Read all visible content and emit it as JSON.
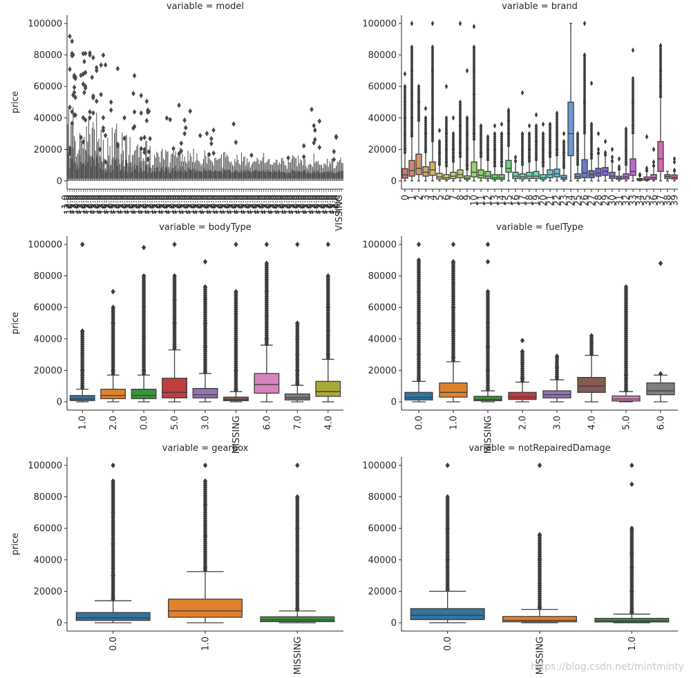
{
  "watermark": "https://blog.csdn.net/mintminty",
  "chart_data": [
    {
      "type": "box",
      "title": "variable = model",
      "ylabel": "price",
      "ylim": [
        0,
        100000
      ],
      "yticks": [
        0,
        20000,
        40000,
        60000,
        80000,
        100000
      ],
      "palette": "single",
      "color": "#4a4a4a",
      "dense": true,
      "extra_label": "VISSING",
      "categories": [],
      "boxes": [
        {
          "category": "bulk",
          "q1": 1500,
          "median": 4000,
          "q3": 9000,
          "whisker_low": 0,
          "whisker_high": 47000,
          "outliers": [
            60000,
            80000,
            100000
          ]
        }
      ]
    },
    {
      "type": "box",
      "title": "variable = brand",
      "ylabel": "",
      "ylim": [
        0,
        100000
      ],
      "yticks": [
        0,
        20000,
        40000,
        60000,
        80000,
        100000
      ],
      "palette": "husl",
      "categories": [
        "0",
        "1",
        "2",
        "3",
        "4",
        "5",
        "6",
        "7",
        "8",
        "9",
        "10",
        "11",
        "12",
        "13",
        "14",
        "15",
        "16",
        "17",
        "18",
        "19",
        "20",
        "21",
        "22",
        "23",
        "24",
        "25",
        "26",
        "27",
        "28",
        "29",
        "30",
        "31",
        "32",
        "33",
        "34",
        "35",
        "36",
        "37",
        "38",
        "39"
      ],
      "boxes": [
        {
          "q1": 1800,
          "median": 3800,
          "q3": 7800,
          "whisker_low": 0,
          "whisker_high": 17500,
          "outliers": [
            20000,
            30000,
            40000,
            50000,
            60000,
            68000
          ]
        },
        {
          "q1": 3000,
          "median": 6500,
          "q3": 13000,
          "whisker_low": 0,
          "whisker_high": 28000,
          "outliers": [
            30000,
            40000,
            55000,
            70000,
            85000,
            100000
          ]
        },
        {
          "q1": 4000,
          "median": 8000,
          "q3": 17000,
          "whisker_low": 0,
          "whisker_high": 38000,
          "outliers": [
            40000,
            50000,
            60000
          ]
        },
        {
          "q1": 3000,
          "median": 5500,
          "q3": 9000,
          "whisker_low": 0,
          "whisker_high": 18000,
          "outliers": [
            20000,
            30000,
            40000,
            46000
          ]
        },
        {
          "q1": 3500,
          "median": 7000,
          "q3": 12000,
          "whisker_low": 0,
          "whisker_high": 25000,
          "outliers": [
            30000,
            40000,
            55000,
            70000,
            85000,
            100000
          ]
        },
        {
          "q1": 1200,
          "median": 2500,
          "q3": 4800,
          "whisker_low": 0,
          "whisker_high": 10000,
          "outliers": [
            12000,
            18000,
            25000,
            32000
          ]
        },
        {
          "q1": 1000,
          "median": 2000,
          "q3": 4000,
          "whisker_low": 0,
          "whisker_high": 9000,
          "outliers": [
            12000,
            20000,
            30000,
            40000,
            60000
          ]
        },
        {
          "q1": 1500,
          "median": 3000,
          "q3": 5500,
          "whisker_low": 0,
          "whisker_high": 12000,
          "outliers": [
            15000,
            20000,
            30000,
            40000
          ]
        },
        {
          "q1": 2000,
          "median": 4000,
          "q3": 7000,
          "whisker_low": 0,
          "whisker_high": 15000,
          "outliers": [
            18000,
            25000,
            35000,
            50000,
            100000
          ]
        },
        {
          "q1": 1000,
          "median": 1800,
          "q3": 3200,
          "whisker_low": 0,
          "whisker_high": 7000,
          "outliers": [
            10000,
            20000,
            30000,
            40000,
            70000
          ]
        },
        {
          "q1": 2500,
          "median": 5500,
          "q3": 12000,
          "whisker_low": 0,
          "whisker_high": 26000,
          "outliers": [
            30000,
            40000,
            55000,
            70000,
            85000,
            98000
          ]
        },
        {
          "q1": 1800,
          "median": 3500,
          "q3": 7000,
          "whisker_low": 0,
          "whisker_high": 15000,
          "outliers": [
            18000,
            25000,
            35000
          ]
        },
        {
          "q1": 1500,
          "median": 3000,
          "q3": 6000,
          "whisker_low": 0,
          "whisker_high": 13000,
          "outliers": [
            15000,
            20000,
            28000
          ]
        },
        {
          "q1": 1000,
          "median": 2000,
          "q3": 4000,
          "whisker_low": 0,
          "whisker_high": 9000,
          "outliers": [
            12000,
            20000,
            30000,
            35000
          ]
        },
        {
          "q1": 1000,
          "median": 2000,
          "q3": 4000,
          "whisker_low": 0,
          "whisker_high": 9000,
          "outliers": [
            12000,
            20000,
            30000,
            36000
          ]
        },
        {
          "q1": 5500,
          "median": 8000,
          "q3": 13000,
          "whisker_low": 0,
          "whisker_high": 22000,
          "outliers": [
            30000,
            38000,
            45000
          ]
        },
        {
          "q1": 1500,
          "median": 3000,
          "q3": 5500,
          "whisker_low": 0,
          "whisker_high": 12000,
          "outliers": [
            15000
          ]
        },
        {
          "q1": 1200,
          "median": 2500,
          "q3": 4500,
          "whisker_low": 0,
          "whisker_high": 10000,
          "outliers": [
            12000,
            20000,
            30000,
            56000
          ]
        },
        {
          "q1": 1500,
          "median": 3000,
          "q3": 5500,
          "whisker_low": 0,
          "whisker_high": 12000,
          "outliers": [
            15000,
            20000,
            30000,
            35000
          ]
        },
        {
          "q1": 1500,
          "median": 3000,
          "q3": 6000,
          "whisker_low": 0,
          "whisker_high": 13000,
          "outliers": [
            15000,
            25000,
            35000,
            42000
          ]
        },
        {
          "q1": 1000,
          "median": 2000,
          "q3": 4000,
          "whisker_low": 0,
          "whisker_high": 9000,
          "outliers": [
            12000,
            20000,
            30000,
            36000
          ]
        },
        {
          "q1": 2000,
          "median": 4000,
          "q3": 7000,
          "whisker_low": 0,
          "whisker_high": 15000,
          "outliers": [
            18000,
            25000,
            36000
          ]
        },
        {
          "q1": 2500,
          "median": 4500,
          "q3": 7500,
          "whisker_low": 0,
          "whisker_high": 16000,
          "outliers": [
            20000,
            30000,
            43000
          ]
        },
        {
          "q1": 1000,
          "median": 2000,
          "q3": 3500,
          "whisker_low": 0,
          "whisker_high": 8000,
          "outliers": [
            10000,
            18000,
            25000,
            30000
          ]
        },
        {
          "q1": 16000,
          "median": 30000,
          "q3": 50000,
          "whisker_low": 0,
          "whisker_high": 100000,
          "outliers": []
        },
        {
          "q1": 1500,
          "median": 2800,
          "q3": 4500,
          "whisker_low": 0,
          "whisker_high": 10000,
          "outliers": [
            12000,
            20000,
            30000
          ]
        },
        {
          "q1": 2000,
          "median": 5000,
          "q3": 13500,
          "whisker_low": 0,
          "whisker_high": 30000,
          "outliers": [
            35000,
            50000,
            65000,
            80000,
            100000
          ]
        },
        {
          "q1": 2000,
          "median": 4000,
          "q3": 6500,
          "whisker_low": 0,
          "whisker_high": 14000,
          "outliers": [
            17000,
            27000,
            36000,
            62000
          ]
        },
        {
          "q1": 3000,
          "median": 5000,
          "q3": 8000,
          "whisker_low": 0,
          "whisker_high": 17000,
          "outliers": [
            20000,
            30000
          ]
        },
        {
          "q1": 3500,
          "median": 6000,
          "q3": 8500,
          "whisker_low": 0,
          "whisker_high": 16000,
          "outliers": [
            18000,
            25000
          ]
        },
        {
          "q1": 1500,
          "median": 3000,
          "q3": 5500,
          "whisker_low": 0,
          "whisker_high": 12000,
          "outliers": [
            15000,
            20000
          ]
        },
        {
          "q1": 1000,
          "median": 1800,
          "q3": 3000,
          "whisker_low": 0,
          "whisker_high": 7000,
          "outliers": [
            9000,
            14000
          ]
        },
        {
          "q1": 1200,
          "median": 2500,
          "q3": 4500,
          "whisker_low": 0,
          "whisker_high": 10000,
          "outliers": [
            12000,
            20000,
            33000
          ]
        },
        {
          "q1": 3500,
          "median": 6000,
          "q3": 14000,
          "whisker_low": 0,
          "whisker_high": 30000,
          "outliers": [
            35000,
            50000,
            65000,
            83000
          ]
        },
        {
          "q1": 300,
          "median": 800,
          "q3": 1500,
          "whisker_low": 0,
          "whisker_high": 3000,
          "outliers": [
            4000
          ]
        },
        {
          "q1": 500,
          "median": 1200,
          "q3": 2500,
          "whisker_low": 0,
          "whisker_high": 6000,
          "outliers": [
            8000,
            28000
          ]
        },
        {
          "q1": 1000,
          "median": 2000,
          "q3": 4000,
          "whisker_low": 0,
          "whisker_high": 9000,
          "outliers": [
            12000,
            20000
          ]
        },
        {
          "q1": 6000,
          "median": 14000,
          "q3": 25000,
          "whisker_low": 0,
          "whisker_high": 53000,
          "outliers": [
            60000,
            70000,
            86000
          ]
        },
        {
          "q1": 1500,
          "median": 2800,
          "q3": 4000,
          "whisker_low": 0,
          "whisker_high": 6000,
          "outliers": []
        },
        {
          "q1": 1200,
          "median": 2200,
          "q3": 3800,
          "whisker_low": 0,
          "whisker_high": 6000,
          "outliers": [
            12000,
            14000
          ]
        }
      ]
    },
    {
      "type": "box",
      "title": "variable = bodyType",
      "ylabel": "price",
      "ylim": [
        0,
        100000
      ],
      "yticks": [
        0,
        20000,
        40000,
        60000,
        80000,
        100000
      ],
      "palette": "tab10",
      "categories": [
        "1.0",
        "2.0",
        "0.0",
        "5.0",
        "3.0",
        "MISSING",
        "6.0",
        "7.0",
        "4.0"
      ],
      "boxes": [
        {
          "q1": 800,
          "median": 1800,
          "q3": 4000,
          "whisker_low": 0,
          "whisker_high": 8000,
          "outliers": [
            10000,
            20000,
            30000,
            45000,
            100000
          ]
        },
        {
          "q1": 2000,
          "median": 4000,
          "q3": 8000,
          "whisker_low": 0,
          "whisker_high": 17000,
          "outliers": [
            20000,
            35000,
            50000,
            60000,
            70000
          ]
        },
        {
          "q1": 2000,
          "median": 4000,
          "q3": 8000,
          "whisker_low": 0,
          "whisker_high": 17000,
          "outliers": [
            20000,
            40000,
            60000,
            80000,
            98000
          ]
        },
        {
          "q1": 2500,
          "median": 6000,
          "q3": 15000,
          "whisker_low": 0,
          "whisker_high": 33000,
          "outliers": [
            35000,
            50000,
            65000,
            80000,
            100000
          ]
        },
        {
          "q1": 2500,
          "median": 4500,
          "q3": 8500,
          "whisker_low": 0,
          "whisker_high": 18000,
          "outliers": [
            20000,
            35000,
            50000,
            65000,
            73000,
            89000
          ]
        },
        {
          "q1": 700,
          "median": 1500,
          "q3": 3000,
          "whisker_low": 0,
          "whisker_high": 6500,
          "outliers": [
            8000,
            20000,
            40000,
            56000,
            70000,
            100000
          ]
        },
        {
          "q1": 5500,
          "median": 11000,
          "q3": 18000,
          "whisker_low": 0,
          "whisker_high": 36000,
          "outliers": [
            40000,
            55000,
            70000,
            88000,
            100000
          ]
        },
        {
          "q1": 1200,
          "median": 2600,
          "q3": 5000,
          "whisker_low": 0,
          "whisker_high": 10500,
          "outliers": [
            12000,
            20000,
            30000,
            40000,
            50000,
            100000
          ]
        },
        {
          "q1": 3500,
          "median": 6500,
          "q3": 13000,
          "whisker_low": 0,
          "whisker_high": 27000,
          "outliers": [
            30000,
            45000,
            60000,
            80000,
            100000
          ]
        }
      ]
    },
    {
      "type": "box",
      "title": "variable = fuelType",
      "ylabel": "",
      "ylim": [
        0,
        100000
      ],
      "yticks": [
        0,
        20000,
        40000,
        60000,
        80000,
        100000
      ],
      "palette": "tab10",
      "categories": [
        "0.0",
        "1.0",
        "MISSING",
        "2.0",
        "3.0",
        "4.0",
        "5.0",
        "6.0"
      ],
      "boxes": [
        {
          "q1": 1200,
          "median": 2800,
          "q3": 6000,
          "whisker_low": 0,
          "whisker_high": 13000,
          "outliers": [
            15000,
            30000,
            50000,
            70000,
            90000,
            100000
          ]
        },
        {
          "q1": 3000,
          "median": 6000,
          "q3": 12000,
          "whisker_low": 0,
          "whisker_high": 25500,
          "outliers": [
            28000,
            45000,
            60000,
            75000,
            89000,
            100000
          ]
        },
        {
          "q1": 700,
          "median": 1500,
          "q3": 3500,
          "whisker_low": 0,
          "whisker_high": 7000,
          "outliers": [
            9000,
            20000,
            35000,
            50000,
            70000,
            89000,
            100000
          ]
        },
        {
          "q1": 1500,
          "median": 3000,
          "q3": 6000,
          "whisker_low": 0,
          "whisker_high": 12500,
          "outliers": [
            15000,
            25000,
            32000,
            39000
          ]
        },
        {
          "q1": 2500,
          "median": 4500,
          "q3": 7000,
          "whisker_low": 0,
          "whisker_high": 14000,
          "outliers": [
            16000,
            22000,
            29000
          ]
        },
        {
          "q1": 6000,
          "median": 10000,
          "q3": 15500,
          "whisker_low": 0,
          "whisker_high": 29500,
          "outliers": [
            33000,
            38000,
            42000
          ]
        },
        {
          "q1": 500,
          "median": 1800,
          "q3": 3700,
          "whisker_low": 0,
          "whisker_high": 6500,
          "outliers": [
            15000,
            17000,
            73000
          ]
        },
        {
          "q1": 4500,
          "median": 7000,
          "q3": 12000,
          "whisker_low": 0,
          "whisker_high": 17000,
          "outliers": [
            88000
          ]
        }
      ]
    },
    {
      "type": "box",
      "title": "variable = gearbox",
      "ylabel": "price",
      "ylim": [
        0,
        100000
      ],
      "yticks": [
        0,
        20000,
        40000,
        60000,
        80000,
        100000
      ],
      "palette": "tab10",
      "categories": [
        "0.0",
        "1.0",
        "MISSING"
      ],
      "boxes": [
        {
          "q1": 1500,
          "median": 3200,
          "q3": 6500,
          "whisker_low": 0,
          "whisker_high": 14000,
          "outliers": [
            16000,
            30000,
            50000,
            70000,
            90000,
            100000
          ]
        },
        {
          "q1": 3500,
          "median": 7500,
          "q3": 15000,
          "whisker_low": 0,
          "whisker_high": 32500,
          "outliers": [
            35000,
            55000,
            75000,
            90000,
            100000
          ]
        },
        {
          "q1": 700,
          "median": 1800,
          "q3": 3800,
          "whisker_low": 0,
          "whisker_high": 7500,
          "outliers": [
            9000,
            25000,
            45000,
            60000,
            80000,
            100000
          ]
        }
      ]
    },
    {
      "type": "box",
      "title": "variable = notRepairedDamage",
      "ylabel": "",
      "ylim": [
        0,
        100000
      ],
      "yticks": [
        0,
        20000,
        40000,
        60000,
        80000,
        100000
      ],
      "palette": "tab10",
      "categories": [
        "0.0",
        "MISSING",
        "1.0"
      ],
      "boxes": [
        {
          "q1": 2000,
          "median": 4800,
          "q3": 9000,
          "whisker_low": 0,
          "whisker_high": 20000,
          "outliers": [
            22000,
            40000,
            60000,
            80000,
            100000
          ]
        },
        {
          "q1": 600,
          "median": 1500,
          "q3": 4000,
          "whisker_low": 0,
          "whisker_high": 8500,
          "outliers": [
            10000,
            25000,
            40000,
            56000,
            100000
          ]
        },
        {
          "q1": 500,
          "median": 1200,
          "q3": 2800,
          "whisker_low": 0,
          "whisker_high": 5500,
          "outliers": [
            7000,
            20000,
            35000,
            44000,
            60000,
            88000,
            100000
          ]
        }
      ]
    }
  ]
}
